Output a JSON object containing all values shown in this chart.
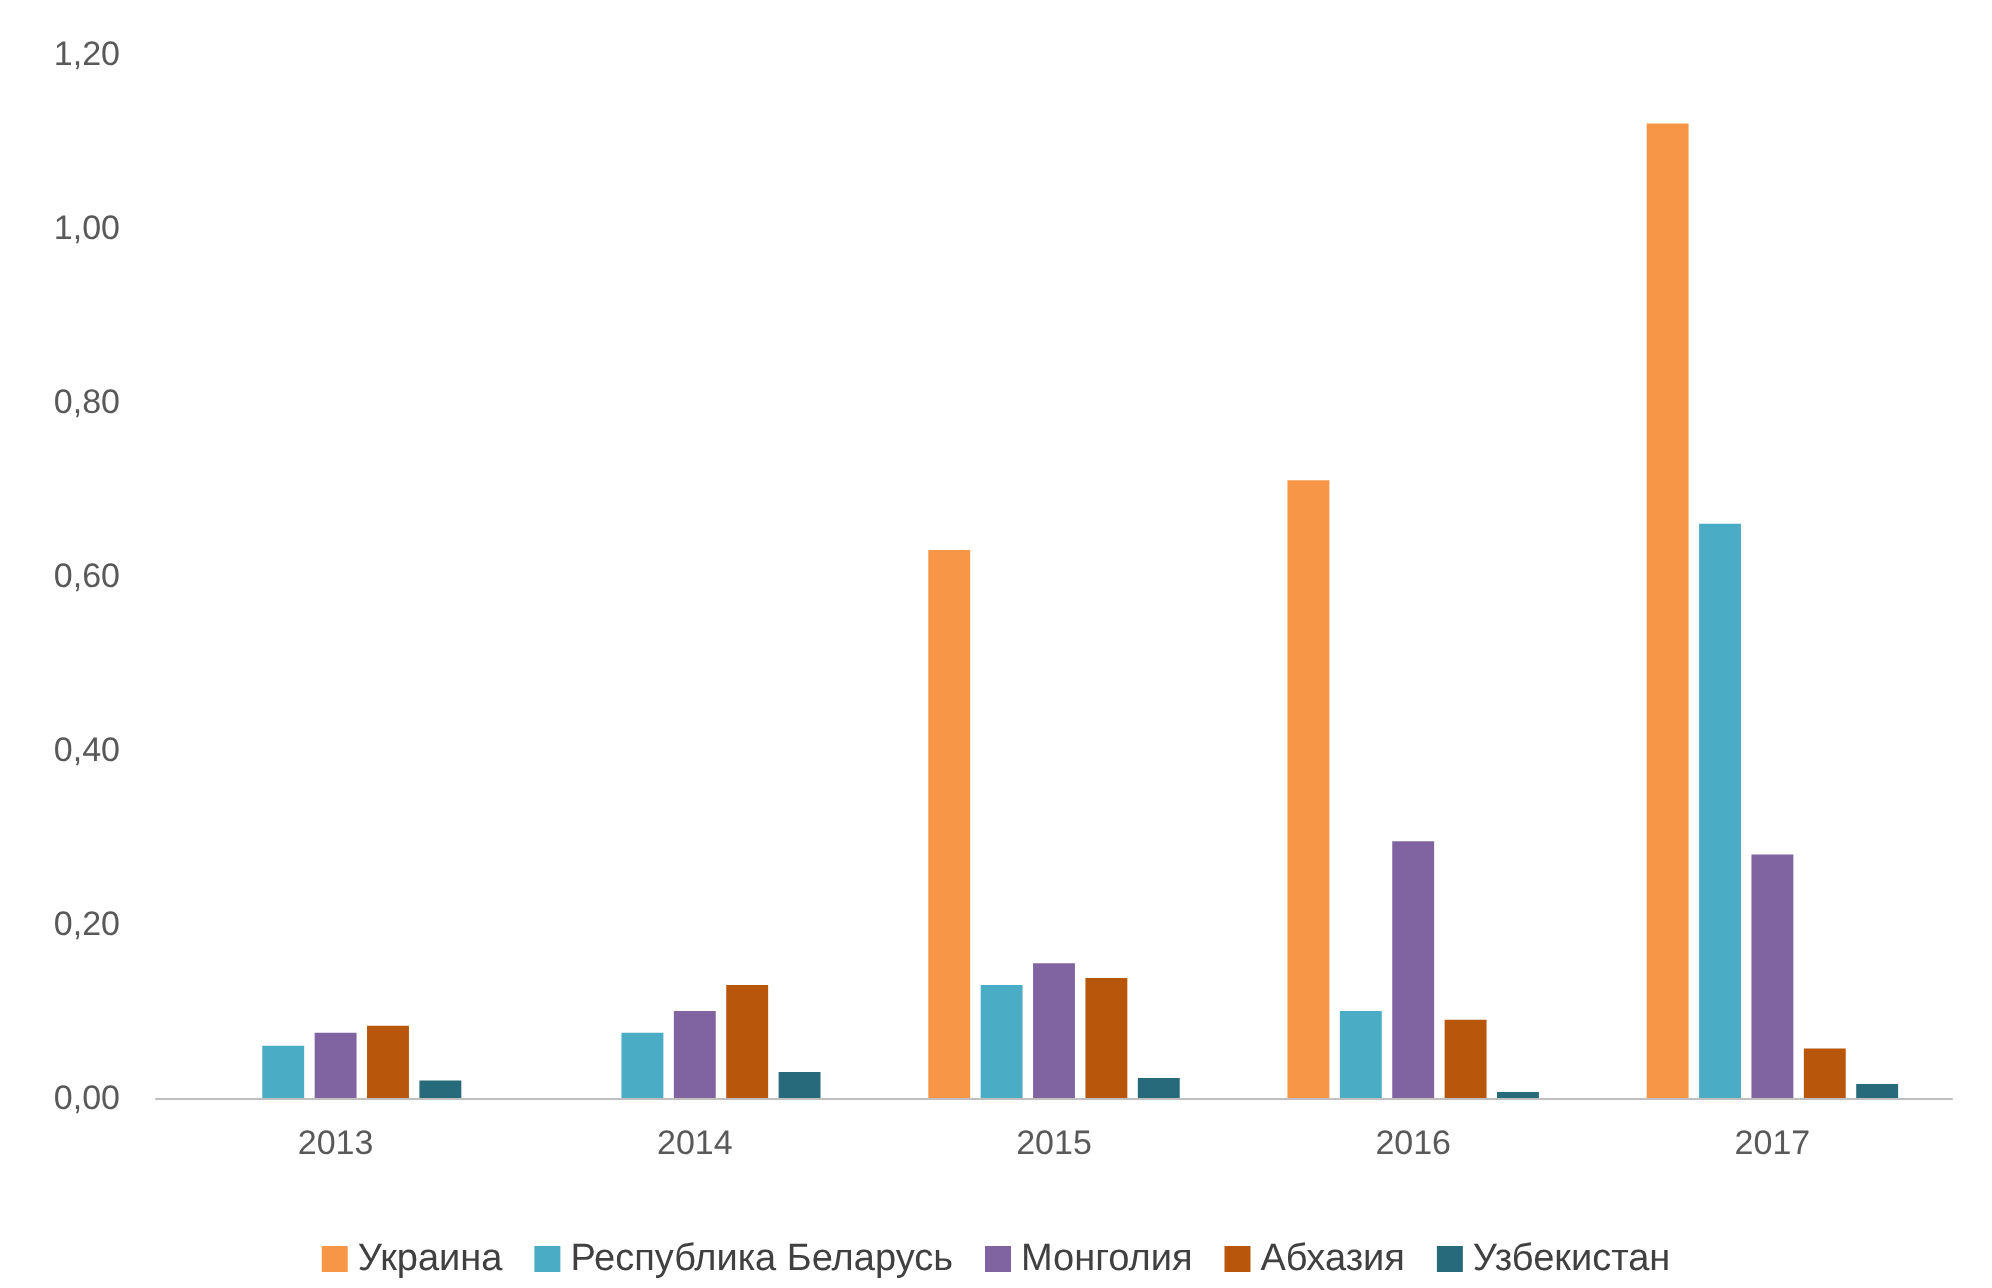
{
  "chart_data": {
    "type": "bar",
    "categories": [
      "2013",
      "2014",
      "2015",
      "2016",
      "2017"
    ],
    "series": [
      {
        "name": "Украина",
        "color": "#f79646",
        "values": [
          null,
          null,
          0.63,
          0.71,
          1.12
        ]
      },
      {
        "name": "Республика Беларусь",
        "color": "#4bacc6",
        "values": [
          0.06,
          0.075,
          0.13,
          0.1,
          0.66
        ]
      },
      {
        "name": "Монголия",
        "color": "#8064a2",
        "values": [
          0.075,
          0.1,
          0.155,
          0.295,
          0.28
        ]
      },
      {
        "name": "Абхазия",
        "color": "#b8560b",
        "values": [
          0.083,
          0.13,
          0.138,
          0.09,
          0.057
        ]
      },
      {
        "name": "Узбекистан",
        "color": "#276a7c",
        "values": [
          0.02,
          0.03,
          0.023,
          0.007,
          0.016
        ]
      }
    ],
    "ylim": [
      0,
      1.2
    ],
    "yticks": [
      {
        "value": 0,
        "label": "0,00"
      },
      {
        "value": 0.2,
        "label": "0,20"
      },
      {
        "value": 0.4,
        "label": "0,40"
      },
      {
        "value": 0.6,
        "label": "0,60"
      },
      {
        "value": 0.8,
        "label": "0,80"
      },
      {
        "value": 1.0,
        "label": "1,00"
      },
      {
        "value": 1.2,
        "label": "1,20"
      }
    ],
    "grid": false,
    "legend": "bottom"
  }
}
